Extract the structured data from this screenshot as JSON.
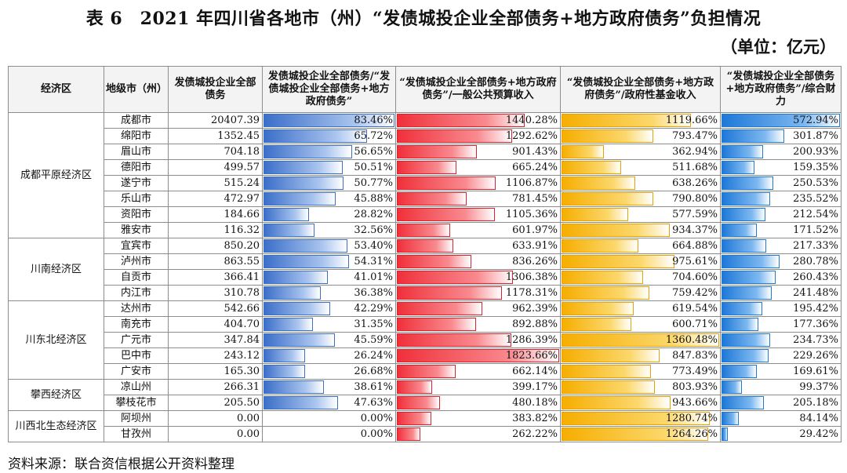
{
  "title": "表 6　2021 年四川省各地市（州）“发债城投企业全部债务+地方政府债务”负担情况",
  "unit": "（单位：亿元）",
  "headers": {
    "zone": "经济区",
    "city": "地级市（州）",
    "debt": "发债城投企业全部债务",
    "ratio1": "发债城投企业全部债务/“发债城投企业全部债务+地方政府债务”",
    "ratio2": "“发债城投企业全部债务+地方政府债务”/一般公共预算收入",
    "ratio3": "“发债城投企业全部债务+地方政府债务”/政府性基金收入",
    "ratio4": "“发债城投企业全部债务+地方政府债务”/综合财力"
  },
  "source": "资料来源：联合资信根据公开资料整理",
  "colors": {
    "c1": "#3b6fc9",
    "c2": "#f0303a",
    "c3": "#f6ae00",
    "c4": "#1e78d7"
  },
  "chart_data": {
    "type": "table",
    "columns": [
      "经济区",
      "地级市（州）",
      "发债城投企业全部债务",
      "发债城投企业全部债务/“发债城投企业全部债务+地方政府债务”",
      "“发债城投企业全部债务+地方政府债务”/一般公共预算收入",
      "“发债城投企业全部债务+地方政府债务”/政府性基金收入",
      "“发债城投企业全部债务+地方政府债务”/综合财力"
    ],
    "max": {
      "r1": 83.46,
      "r2": 1823.66,
      "r3": 1360.48,
      "r4": 572.94
    },
    "groups": [
      {
        "zone": "成都平原经济区",
        "rows": [
          {
            "city": "成都市",
            "debt": "20407.39",
            "r1": 83.46,
            "r1s": "83.46%",
            "r2": 1440.28,
            "r2s": "1440.28%",
            "r3": 1119.66,
            "r3s": "1119.66%",
            "r4": 572.94,
            "r4s": "572.94%"
          },
          {
            "city": "绵阳市",
            "debt": "1352.45",
            "r1": 65.72,
            "r1s": "65.72%",
            "r2": 1292.62,
            "r2s": "1292.62%",
            "r3": 793.47,
            "r3s": "793.47%",
            "r4": 301.87,
            "r4s": "301.87%"
          },
          {
            "city": "眉山市",
            "debt": "704.18",
            "r1": 56.65,
            "r1s": "56.65%",
            "r2": 901.43,
            "r2s": "901.43%",
            "r3": 362.94,
            "r3s": "362.94%",
            "r4": 200.93,
            "r4s": "200.93%"
          },
          {
            "city": "德阳市",
            "debt": "499.57",
            "r1": 50.51,
            "r1s": "50.51%",
            "r2": 665.24,
            "r2s": "665.24%",
            "r3": 511.68,
            "r3s": "511.68%",
            "r4": 159.35,
            "r4s": "159.35%"
          },
          {
            "city": "遂宁市",
            "debt": "515.24",
            "r1": 50.77,
            "r1s": "50.77%",
            "r2": 1106.87,
            "r2s": "1106.87%",
            "r3": 638.26,
            "r3s": "638.26%",
            "r4": 250.53,
            "r4s": "250.53%"
          },
          {
            "city": "乐山市",
            "debt": "472.97",
            "r1": 45.88,
            "r1s": "45.88%",
            "r2": 781.45,
            "r2s": "781.45%",
            "r3": 790.8,
            "r3s": "790.80%",
            "r4": 235.52,
            "r4s": "235.52%"
          },
          {
            "city": "资阳市",
            "debt": "184.66",
            "r1": 28.82,
            "r1s": "28.82%",
            "r2": 1105.36,
            "r2s": "1105.36%",
            "r3": 577.59,
            "r3s": "577.59%",
            "r4": 212.54,
            "r4s": "212.54%"
          },
          {
            "city": "雅安市",
            "debt": "116.32",
            "r1": 32.56,
            "r1s": "32.56%",
            "r2": 601.97,
            "r2s": "601.97%",
            "r3": 934.37,
            "r3s": "934.37%",
            "r4": 171.52,
            "r4s": "171.52%"
          }
        ]
      },
      {
        "zone": "川南经济区",
        "rows": [
          {
            "city": "宜宾市",
            "debt": "850.20",
            "r1": 53.4,
            "r1s": "53.40%",
            "r2": 633.91,
            "r2s": "633.91%",
            "r3": 664.88,
            "r3s": "664.88%",
            "r4": 217.33,
            "r4s": "217.33%"
          },
          {
            "city": "泸州市",
            "debt": "863.55",
            "r1": 54.31,
            "r1s": "54.31%",
            "r2": 836.26,
            "r2s": "836.26%",
            "r3": 975.61,
            "r3s": "975.61%",
            "r4": 280.78,
            "r4s": "280.78%"
          },
          {
            "city": "自贡市",
            "debt": "366.41",
            "r1": 41.01,
            "r1s": "41.01%",
            "r2": 1306.38,
            "r2s": "1306.38%",
            "r3": 704.6,
            "r3s": "704.60%",
            "r4": 260.43,
            "r4s": "260.43%"
          },
          {
            "city": "内江市",
            "debt": "310.78",
            "r1": 36.38,
            "r1s": "36.38%",
            "r2": 1178.31,
            "r2s": "1178.31%",
            "r3": 759.42,
            "r3s": "759.42%",
            "r4": 241.48,
            "r4s": "241.48%"
          }
        ]
      },
      {
        "zone": "川东北经济区",
        "rows": [
          {
            "city": "达州市",
            "debt": "542.66",
            "r1": 42.29,
            "r1s": "42.29%",
            "r2": 962.39,
            "r2s": "962.39%",
            "r3": 619.54,
            "r3s": "619.54%",
            "r4": 195.42,
            "r4s": "195.42%"
          },
          {
            "city": "南充市",
            "debt": "404.70",
            "r1": 31.35,
            "r1s": "31.35%",
            "r2": 892.88,
            "r2s": "892.88%",
            "r3": 600.71,
            "r3s": "600.71%",
            "r4": 177.36,
            "r4s": "177.36%"
          },
          {
            "city": "广元市",
            "debt": "347.84",
            "r1": 45.59,
            "r1s": "45.59%",
            "r2": 1286.39,
            "r2s": "1286.39%",
            "r3": 1360.48,
            "r3s": "1360.48%",
            "r4": 234.73,
            "r4s": "234.73%"
          },
          {
            "city": "巴中市",
            "debt": "243.12",
            "r1": 26.24,
            "r1s": "26.24%",
            "r2": 1823.66,
            "r2s": "1823.66%",
            "r3": 847.83,
            "r3s": "847.83%",
            "r4": 229.26,
            "r4s": "229.26%"
          },
          {
            "city": "广安市",
            "debt": "165.30",
            "r1": 26.68,
            "r1s": "26.68%",
            "r2": 662.14,
            "r2s": "662.14%",
            "r3": 773.49,
            "r3s": "773.49%",
            "r4": 169.61,
            "r4s": "169.61%"
          }
        ]
      },
      {
        "zone": "攀西经济区",
        "rows": [
          {
            "city": "凉山州",
            "debt": "266.31",
            "r1": 38.61,
            "r1s": "38.61%",
            "r2": 399.17,
            "r2s": "399.17%",
            "r3": 803.93,
            "r3s": "803.93%",
            "r4": 99.37,
            "r4s": "99.37%"
          },
          {
            "city": "攀枝花市",
            "debt": "205.50",
            "r1": 47.63,
            "r1s": "47.63%",
            "r2": 480.18,
            "r2s": "480.18%",
            "r3": 943.66,
            "r3s": "943.66%",
            "r4": 205.18,
            "r4s": "205.18%"
          }
        ]
      },
      {
        "zone": "川西北生态经济区",
        "rows": [
          {
            "city": "阿坝州",
            "debt": "0.00",
            "r1": 0.0,
            "r1s": "0.00%",
            "r2": 383.82,
            "r2s": "383.82%",
            "r3": 1280.74,
            "r3s": "1280.74%",
            "r4": 84.14,
            "r4s": "84.14%"
          },
          {
            "city": "甘孜州",
            "debt": "0.00",
            "r1": 0.0,
            "r1s": "0.00%",
            "r2": 262.22,
            "r2s": "262.22%",
            "r3": 1264.26,
            "r3s": "1264.26%",
            "r4": 29.42,
            "r4s": "29.42%"
          }
        ]
      }
    ]
  }
}
